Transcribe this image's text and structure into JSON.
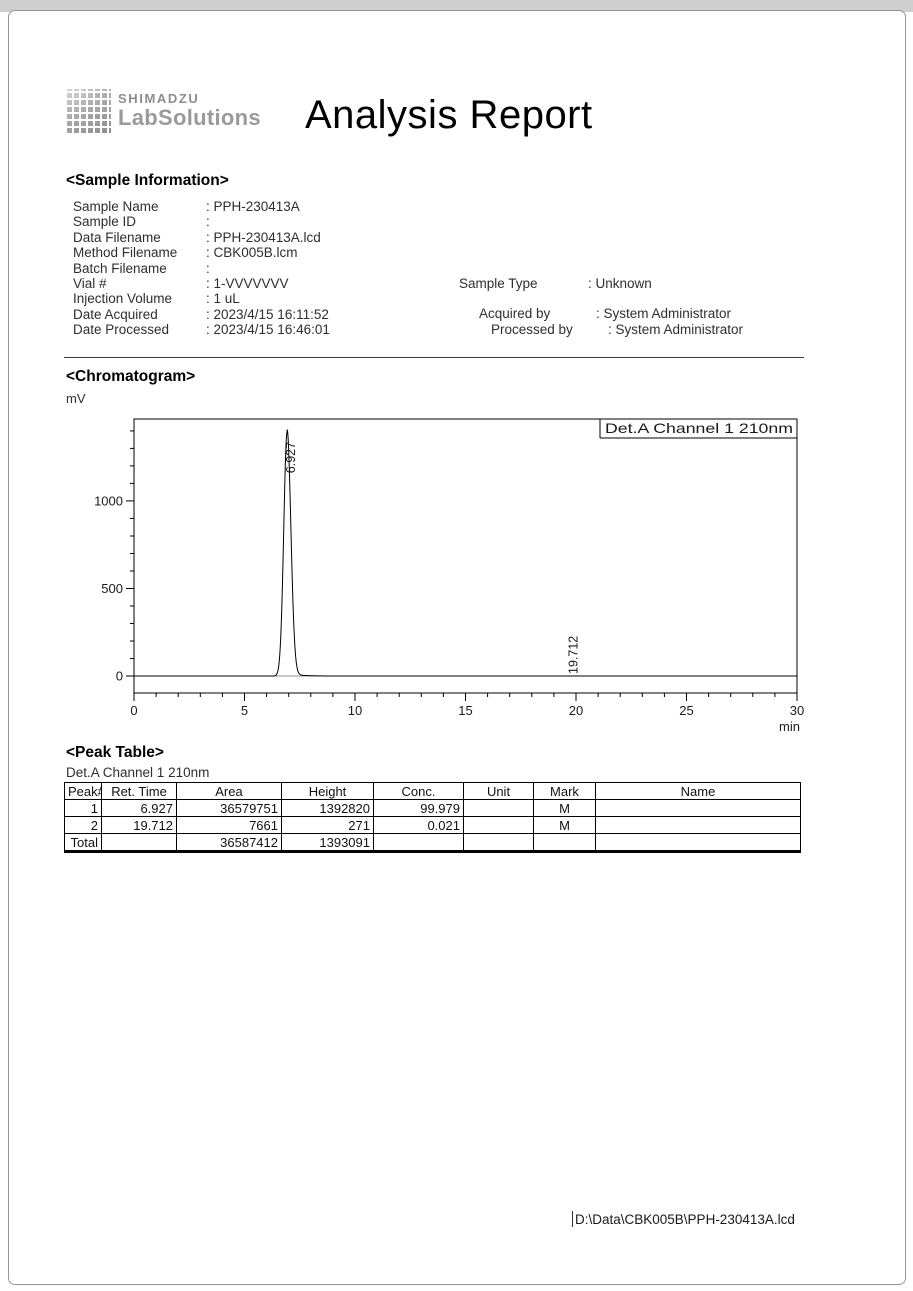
{
  "header": {
    "brand_top": "SHIMADZU",
    "brand_bottom": "LabSolutions",
    "title": "Analysis Report"
  },
  "sample_information": {
    "heading": "<Sample Information>",
    "left_rows": [
      {
        "label": "Sample Name",
        "value": "PPH-230413A"
      },
      {
        "label": "Sample ID",
        "value": ""
      },
      {
        "label": "Data Filename",
        "value": "PPH-230413A.lcd"
      },
      {
        "label": "Method Filename",
        "value": "CBK005B.lcm"
      },
      {
        "label": "Batch Filename",
        "value": ""
      },
      {
        "label": "Vial #",
        "value": "1-VVVVVVV"
      },
      {
        "label": "Injection Volume",
        "value": "1 uL"
      },
      {
        "label": "Date Acquired",
        "value": "2023/4/15 16:11:52"
      },
      {
        "label": "Date Processed",
        "value": "2023/4/15 16:46:01"
      }
    ],
    "right_rows": [
      {
        "label": "Sample Type",
        "value": "Unknown"
      },
      {
        "label": "Acquired by",
        "value": "System Administrator"
      },
      {
        "label": "Processed by",
        "value": "System Administrator"
      }
    ]
  },
  "chromatogram": {
    "heading": "<Chromatogram>",
    "y_unit": "mV"
  },
  "chart_data": {
    "type": "line",
    "title": "Chromatogram",
    "legend": "Det.A Channel 1 210nm",
    "xlabel": "min",
    "ylabel": "mV",
    "x_range": [
      0,
      30
    ],
    "y_range": [
      -97,
      1468
    ],
    "x_major_ticks": [
      0,
      5,
      10,
      15,
      20,
      25,
      30
    ],
    "x_minor_step": 1,
    "y_major_ticks": [
      0,
      500,
      1000
    ],
    "y_minor_step": 100,
    "baseline_mv": 0,
    "grid": false,
    "peaks": [
      {
        "ret_time": 6.927,
        "height_mv": 1392.82,
        "label": "6.927"
      },
      {
        "ret_time": 19.712,
        "height_mv": 0.271,
        "label": "19.712"
      }
    ],
    "colors": {
      "trace": "#000000",
      "baseline": "#8f8f8f",
      "frame": "#000000"
    }
  },
  "peak_table": {
    "heading": "<Peak Table>",
    "channel": "Det.A Channel 1 210nm",
    "headers": [
      "Peak#",
      "Ret. Time",
      "Area",
      "Height",
      "Conc.",
      "Unit",
      "Mark",
      "Name"
    ],
    "rows": [
      [
        "1",
        "6.927",
        "36579751",
        "1392820",
        "99.979",
        "",
        "M",
        ""
      ],
      [
        "2",
        "19.712",
        "7661",
        "271",
        "0.021",
        "",
        "M",
        ""
      ]
    ],
    "total_row": [
      "Total",
      "",
      "36587412",
      "1393091",
      "",
      "",
      "",
      ""
    ]
  },
  "footer": {
    "file_path": "D:\\Data\\CBK005B\\PPH-230413A.lcd"
  }
}
